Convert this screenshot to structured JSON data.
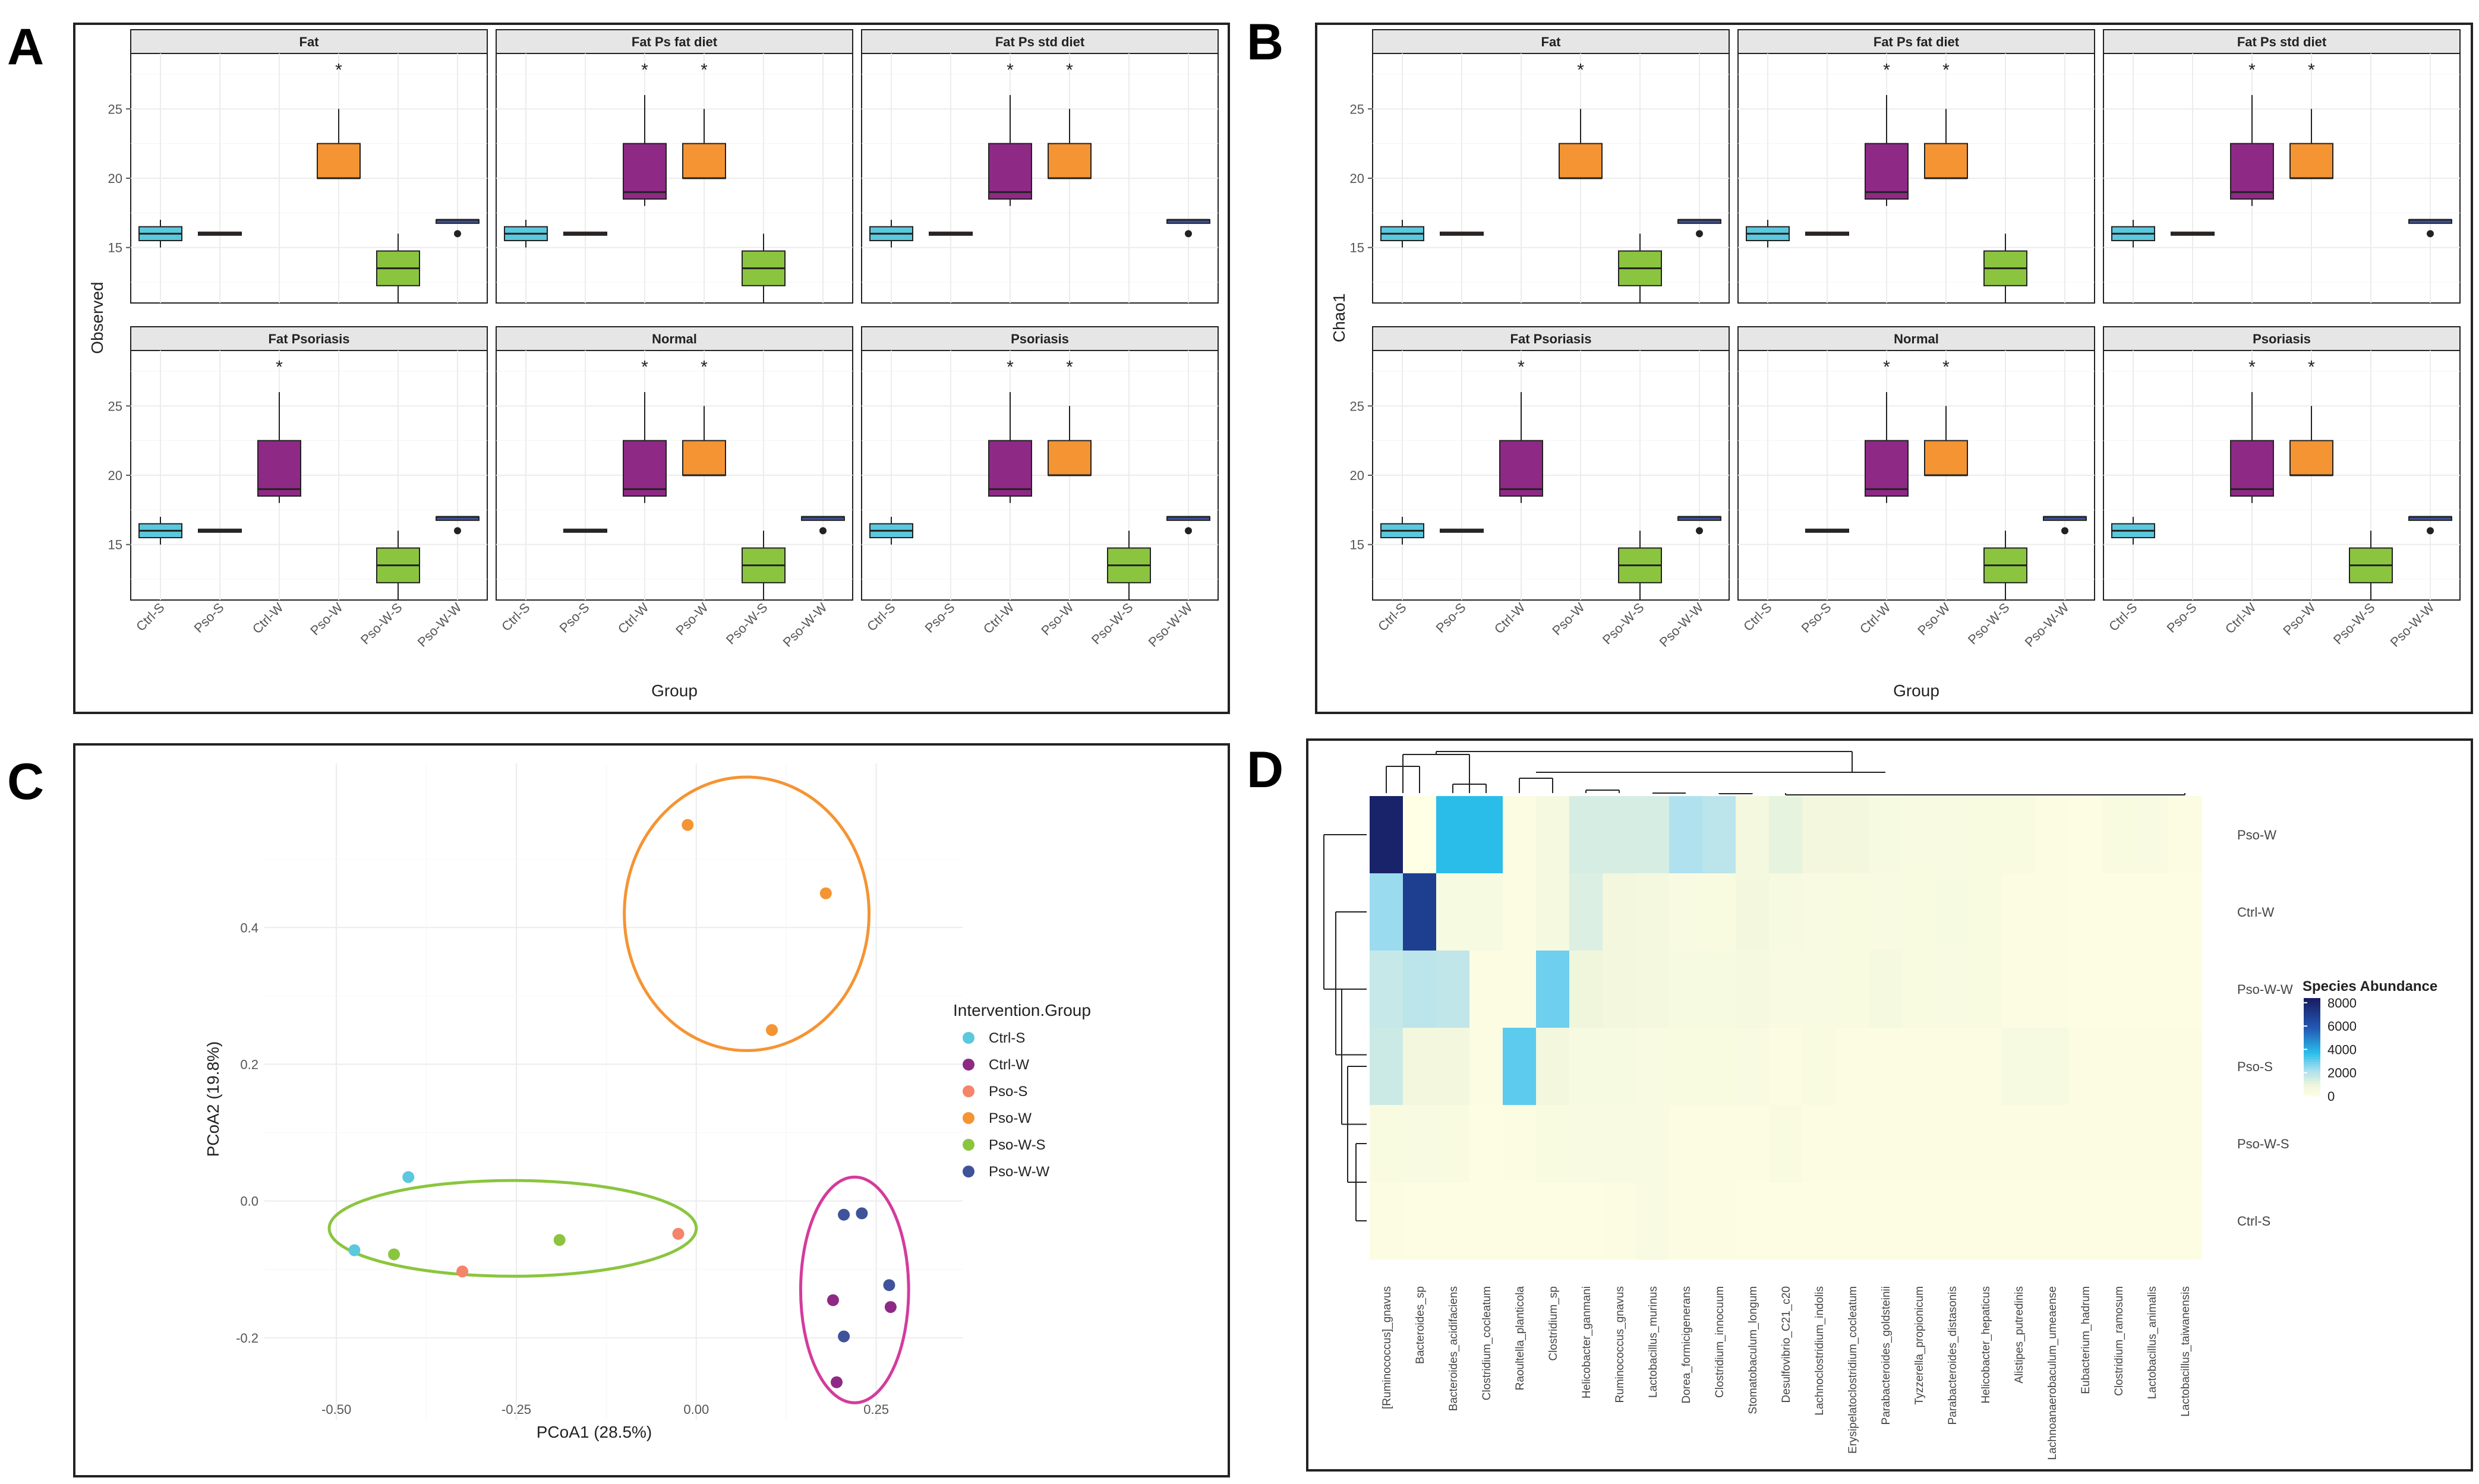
{
  "colors": {
    "Ctrl-S": "#5bc8dd",
    "Ctrl-W": "#8e2a85",
    "Pso-S": "#f4846a",
    "Pso-W": "#f59433",
    "Pso-W-S": "#8bc53f",
    "Pso-W-W": "#3f539b",
    "ellipse_orange": "#f59433",
    "ellipse_green": "#8bc53f",
    "ellipse_pink": "#d43b9c",
    "strip_bg": "#e6e6e6",
    "grid": "#ececec"
  },
  "chart_data": [
    {
      "panel": "A",
      "type": "box",
      "ylabel": "Observed",
      "xlabel": "Group",
      "ylim": [
        11,
        29
      ],
      "yticks": [
        15,
        20,
        25
      ],
      "categories": [
        "Ctrl-S",
        "Pso-S",
        "Ctrl-W",
        "Pso-W",
        "Pso-W-S",
        "Pso-W-W"
      ],
      "stats": {
        "Ctrl-S": {
          "min": 15,
          "q1": 15.5,
          "median": 16,
          "q3": 16.5,
          "max": 17
        },
        "Pso-S": {
          "min": 16,
          "q1": 16,
          "median": 16,
          "q3": 16,
          "max": 16
        },
        "Ctrl-W": {
          "min": 18,
          "q1": 18.5,
          "median": 19,
          "q3": 22.5,
          "max": 26
        },
        "Pso-W": {
          "min": 20,
          "q1": 20,
          "median": 20,
          "q3": 22.5,
          "max": 25
        },
        "Pso-W-S": {
          "min": 11,
          "q1": 12.25,
          "median": 13.5,
          "q3": 14.75,
          "max": 16
        },
        "Pso-W-W": {
          "min": 16.75,
          "q1": 16.75,
          "median": 17,
          "q3": 17,
          "max": 17,
          "outliers": [
            16
          ]
        }
      },
      "star_y": 28,
      "facets": [
        {
          "title": "Fat",
          "groups": [
            "Ctrl-S",
            "Pso-S",
            "Pso-W",
            "Pso-W-S",
            "Pso-W-W"
          ],
          "stars": [
            "Pso-W"
          ]
        },
        {
          "title": "Fat Ps fat diet",
          "groups": [
            "Ctrl-S",
            "Pso-S",
            "Ctrl-W",
            "Pso-W",
            "Pso-W-S"
          ],
          "stars": [
            "Ctrl-W",
            "Pso-W"
          ]
        },
        {
          "title": "Fat Ps std diet",
          "groups": [
            "Ctrl-S",
            "Pso-S",
            "Ctrl-W",
            "Pso-W",
            "Pso-W-W"
          ],
          "stars": [
            "Ctrl-W",
            "Pso-W"
          ]
        },
        {
          "title": "Fat Psoriasis",
          "groups": [
            "Ctrl-S",
            "Pso-S",
            "Ctrl-W",
            "Pso-W-S",
            "Pso-W-W"
          ],
          "stars": [
            "Ctrl-W"
          ]
        },
        {
          "title": "Normal",
          "groups": [
            "Pso-S",
            "Ctrl-W",
            "Pso-W",
            "Pso-W-S",
            "Pso-W-W"
          ],
          "stars": [
            "Ctrl-W",
            "Pso-W"
          ]
        },
        {
          "title": "Psoriasis",
          "groups": [
            "Ctrl-S",
            "Ctrl-W",
            "Pso-W",
            "Pso-W-S",
            "Pso-W-W"
          ],
          "stars": [
            "Ctrl-W",
            "Pso-W"
          ]
        }
      ]
    },
    {
      "panel": "B",
      "type": "box",
      "ylabel": "Chao1",
      "xlabel": "Group",
      "same_as_panel": "A"
    },
    {
      "panel": "C",
      "type": "scatter",
      "xlabel": "PCoA1 (28.5%)",
      "ylabel": "PCoA2 (19.8%)",
      "xlim": [
        -0.6,
        0.37
      ],
      "ylim": [
        -0.32,
        0.64
      ],
      "xticks": [
        "-0.50",
        "-0.25",
        "0.00",
        "0.25"
      ],
      "xtick_values": [
        -0.5,
        -0.25,
        0,
        0.25
      ],
      "yticks": [
        "-0.2",
        "0.0",
        "0.2",
        "0.4"
      ],
      "ytick_values": [
        -0.2,
        0,
        0.2,
        0.4
      ],
      "legend_title": "Intervention.Group",
      "legend": [
        "Ctrl-S",
        "Ctrl-W",
        "Pso-S",
        "Pso-W",
        "Pso-W-S",
        "Pso-W-W"
      ],
      "points": [
        {
          "group": "Ctrl-S",
          "x": -0.4,
          "y": 0.035
        },
        {
          "group": "Ctrl-S",
          "x": -0.475,
          "y": -0.072
        },
        {
          "group": "Ctrl-W",
          "x": 0.19,
          "y": -0.145
        },
        {
          "group": "Ctrl-W",
          "x": 0.27,
          "y": -0.155
        },
        {
          "group": "Ctrl-W",
          "x": 0.195,
          "y": -0.265
        },
        {
          "group": "Pso-S",
          "x": -0.325,
          "y": -0.103
        },
        {
          "group": "Pso-S",
          "x": -0.025,
          "y": -0.048
        },
        {
          "group": "Pso-W",
          "x": -0.012,
          "y": 0.55
        },
        {
          "group": "Pso-W",
          "x": 0.18,
          "y": 0.45
        },
        {
          "group": "Pso-W",
          "x": 0.105,
          "y": 0.25
        },
        {
          "group": "Pso-W-S",
          "x": -0.42,
          "y": -0.078
        },
        {
          "group": "Pso-W-S",
          "x": -0.19,
          "y": -0.057
        },
        {
          "group": "Pso-W-W",
          "x": 0.205,
          "y": -0.02
        },
        {
          "group": "Pso-W-W",
          "x": 0.23,
          "y": -0.018
        },
        {
          "group": "Pso-W-W",
          "x": 0.268,
          "y": -0.123
        },
        {
          "group": "Pso-W-W",
          "x": 0.205,
          "y": -0.198
        }
      ],
      "ellipses": [
        {
          "color": "orange",
          "cx": 0.07,
          "cy": 0.42,
          "rx": 0.17,
          "ry": 0.2
        },
        {
          "color": "green",
          "cx": -0.255,
          "cy": -0.04,
          "rx": 0.255,
          "ry": 0.07
        },
        {
          "color": "pink",
          "cx": 0.22,
          "cy": -0.13,
          "rx": 0.075,
          "ry": 0.165
        }
      ]
    },
    {
      "panel": "D",
      "type": "heatmap",
      "legend_title": "Species Abundance",
      "colorbar_ticks": [
        "8000",
        "6000",
        "4000",
        "2000",
        "0"
      ],
      "colorbar_values": [
        8000,
        6000,
        4000,
        2000,
        0
      ],
      "rows": [
        "Pso-W",
        "Ctrl-W",
        "Pso-W-W",
        "Pso-S",
        "Pso-W-S",
        "Ctrl-S"
      ],
      "columns": [
        "[Ruminococcus]_gnavus",
        "Bacteroides_sp",
        "Bacteroides_acidifaciens",
        "Clostridium_cocleatum",
        "Raoultella_planticola",
        "Clostridium_sp",
        "Helicobacter_ganmani",
        "Ruminococcus_gnavus",
        "Lactobacillus_murinus",
        "Dorea_formicigenerans",
        "Clostridium_innocuum",
        "Stomatobaculum_longum",
        "Desulfovibrio_C21_c20",
        "Lachnoclostridium_indolis",
        "Erysipelatoclostridium_cocleatum",
        "Parabacteroides_goldsteinii",
        "Tyzzerella_propionicum",
        "Parabacteroides_distasonis",
        "Helicobacter_hepaticus",
        "Alistipes_putredinis",
        "Lachnoanaerobaculum_umeaense",
        "Eubacterium_hadrum",
        "Clostridium_ramosum",
        "Lactobacillus_animalis",
        "Lactobacillus_taiwanensis"
      ],
      "values": [
        [
          8200,
          0,
          3800,
          3800,
          300,
          700,
          1500,
          1500,
          1500,
          2200,
          2000,
          800,
          1200,
          900,
          900,
          600,
          500,
          500,
          400,
          400,
          300,
          200,
          400,
          500,
          300
        ],
        [
          2500,
          7000,
          600,
          600,
          300,
          700,
          1400,
          900,
          800,
          500,
          400,
          900,
          600,
          500,
          400,
          500,
          400,
          600,
          400,
          300,
          300,
          200,
          200,
          200,
          200
        ],
        [
          1800,
          2000,
          1900,
          300,
          300,
          3000,
          1000,
          900,
          800,
          600,
          600,
          700,
          500,
          500,
          400,
          700,
          400,
          500,
          400,
          300,
          300,
          200,
          200,
          200,
          200
        ],
        [
          1700,
          900,
          900,
          300,
          3200,
          900,
          600,
          600,
          500,
          400,
          400,
          500,
          300,
          400,
          300,
          300,
          300,
          300,
          300,
          600,
          600,
          300,
          300,
          300,
          300
        ],
        [
          400,
          500,
          400,
          200,
          300,
          400,
          500,
          500,
          500,
          300,
          300,
          300,
          400,
          300,
          300,
          300,
          300,
          300,
          300,
          300,
          300,
          300,
          300,
          300,
          300
        ],
        [
          300,
          200,
          200,
          200,
          200,
          200,
          200,
          300,
          500,
          300,
          300,
          200,
          200,
          200,
          200,
          200,
          200,
          200,
          200,
          200,
          200,
          200,
          200,
          200,
          200
        ]
      ]
    }
  ],
  "panel_labels": [
    "A",
    "B",
    "C",
    "D"
  ]
}
